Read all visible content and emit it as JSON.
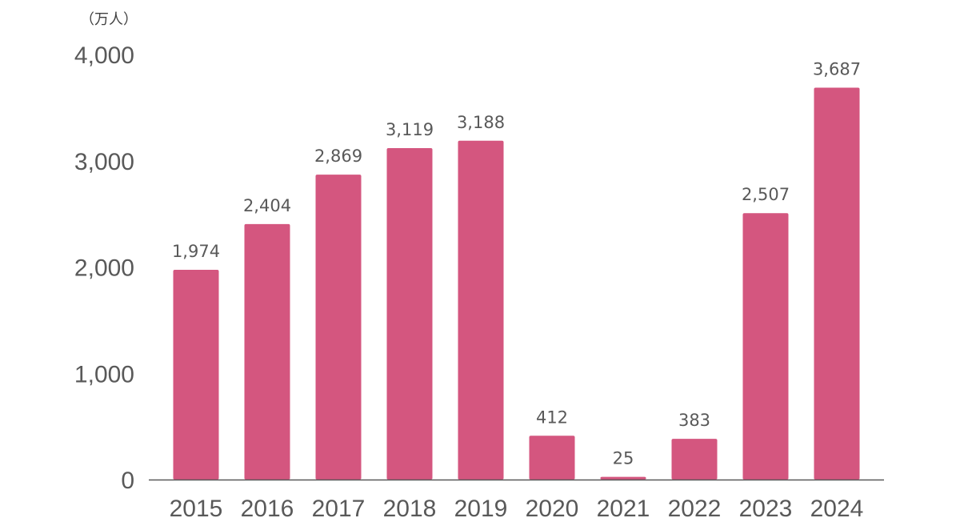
{
  "chart_data": {
    "type": "bar",
    "title": "",
    "xlabel": "",
    "ylabel": "",
    "unit_label": "（万人）",
    "categories": [
      "2015",
      "2016",
      "2017",
      "2018",
      "2019",
      "2020",
      "2021",
      "2022",
      "2023",
      "2024"
    ],
    "values": [
      1974,
      2404,
      2869,
      3119,
      3188,
      412,
      25,
      383,
      2507,
      3687
    ],
    "value_labels": [
      "1,974",
      "2,404",
      "2,869",
      "3,119",
      "3,188",
      "412",
      "25",
      "383",
      "2,507",
      "3,687"
    ],
    "ylim": [
      0,
      4000
    ],
    "y_ticks": [
      0,
      1000,
      2000,
      3000,
      4000
    ],
    "y_tick_labels": [
      "0",
      "1,000",
      "2,000",
      "3,000",
      "4,000"
    ],
    "grid": false,
    "legend": "none",
    "bar_color": "#d4567f",
    "axis_color": "#595959"
  }
}
